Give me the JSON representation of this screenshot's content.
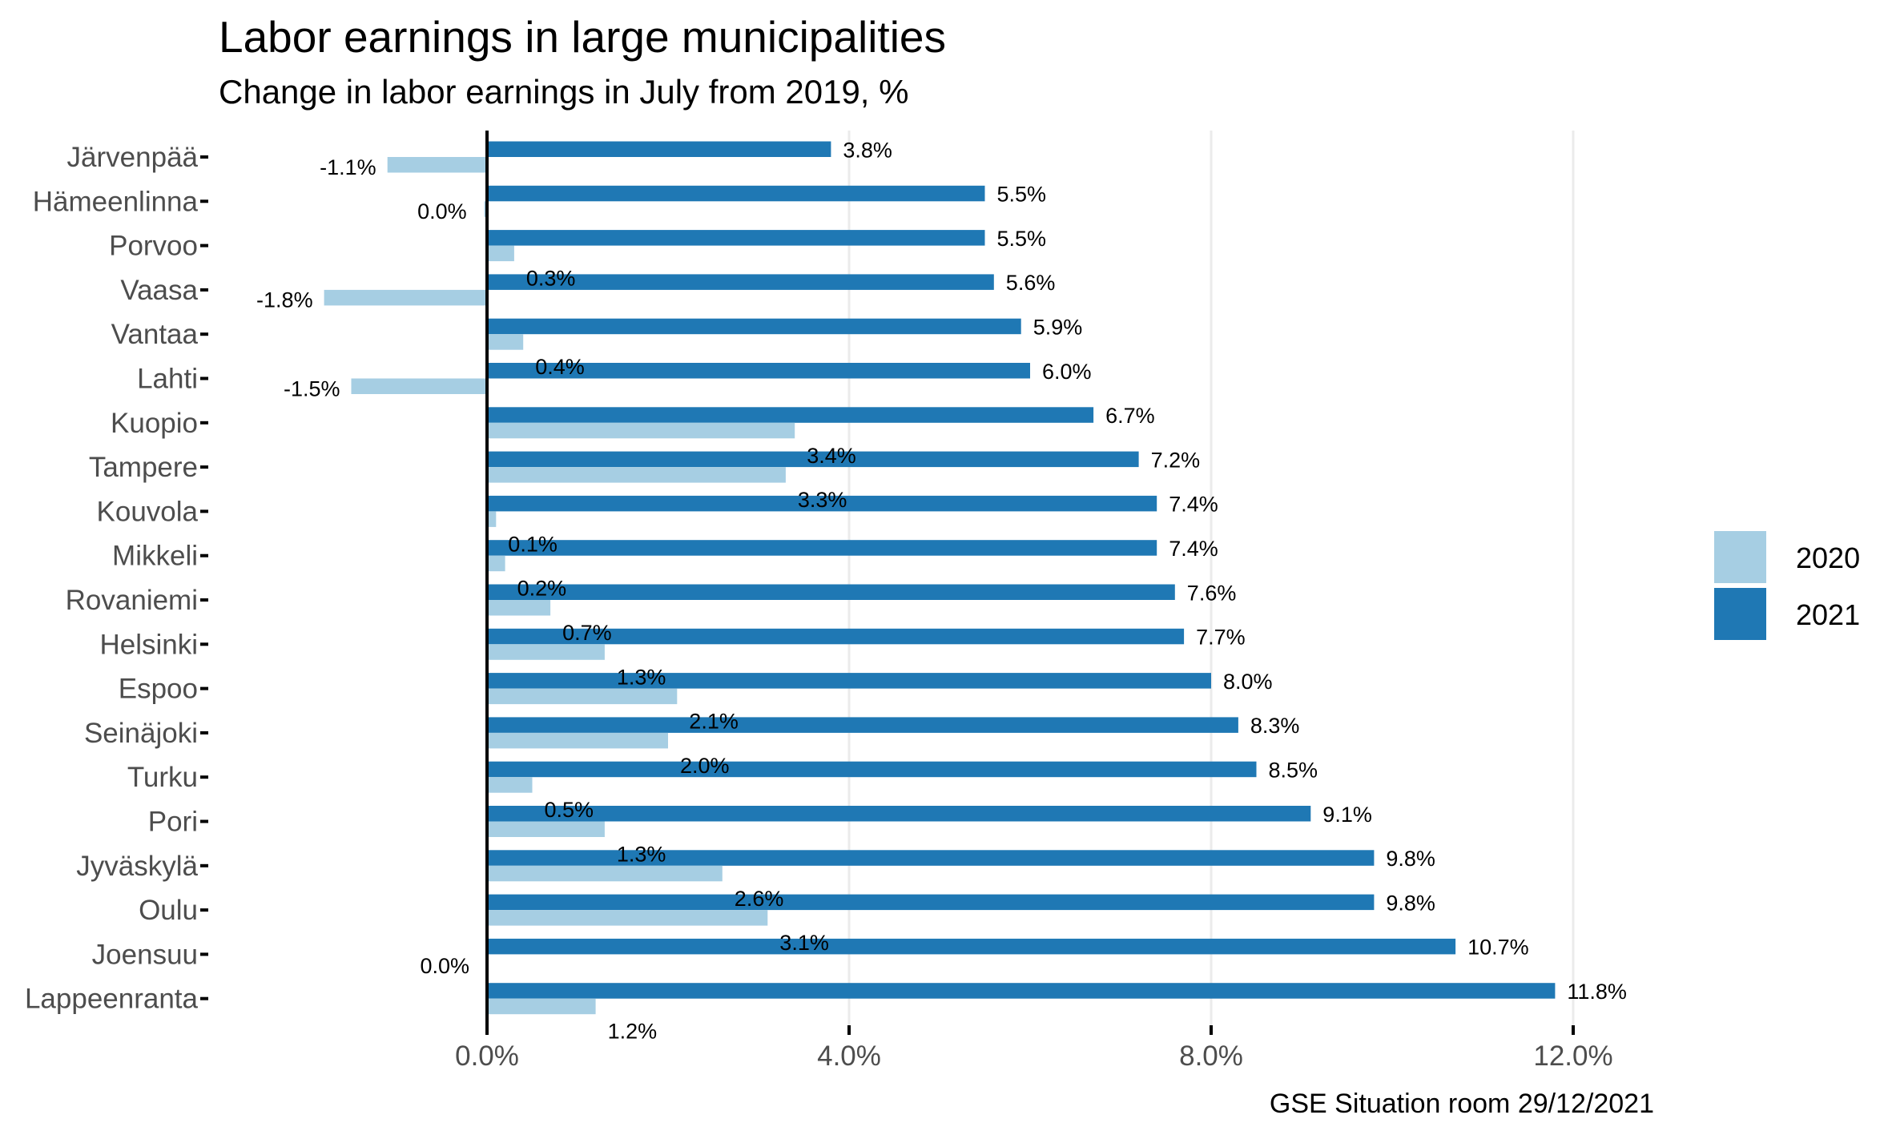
{
  "chart_data": {
    "type": "bar",
    "orientation": "horizontal",
    "title": "Labor earnings in large municipalities",
    "subtitle": "Change in labor earnings in July from 2019, %",
    "caption": "GSE Situation room 29/12/2021",
    "xlabel": "",
    "ylabel": "",
    "xlim": [
      -3.06,
      12.9
    ],
    "xticks": [
      0,
      4,
      8,
      12
    ],
    "xtick_labels": [
      "0.0%",
      "4.0%",
      "8.0%",
      "12.0%"
    ],
    "grid": "vertical major",
    "legend": {
      "position": "right",
      "entries": [
        "2020",
        "2021"
      ]
    },
    "categories": [
      "Järvenpää",
      "Hämeenlinna",
      "Porvoo",
      "Vaasa",
      "Vantaa",
      "Lahti",
      "Kuopio",
      "Tampere",
      "Kouvola",
      "Mikkeli",
      "Rovaniemi",
      "Helsinki",
      "Espoo",
      "Seinäjoki",
      "Turku",
      "Pori",
      "Jyväskylä",
      "Oulu",
      "Joensuu",
      "Lappeenranta"
    ],
    "series": [
      {
        "name": "2020",
        "color": "#a6cee3",
        "values": [
          -1.1,
          -0.03,
          0.3,
          -1.8,
          0.4,
          -1.5,
          3.4,
          3.3,
          0.1,
          0.2,
          0.7,
          1.3,
          2.1,
          2.0,
          0.5,
          1.3,
          2.6,
          3.1,
          0.0,
          1.2
        ],
        "labels": [
          "-1.1%",
          "0.0%",
          "0.3%",
          "-1.8%",
          "0.4%",
          "-1.5%",
          "3.4%",
          "3.3%",
          "0.1%",
          "0.2%",
          "0.7%",
          "1.3%",
          "2.1%",
          "2.0%",
          "0.5%",
          "1.3%",
          "2.6%",
          "3.1%",
          "0.0%",
          "1.2%"
        ]
      },
      {
        "name": "2021",
        "color": "#1f78b4",
        "values": [
          3.8,
          5.5,
          5.5,
          5.6,
          5.9,
          6.0,
          6.7,
          7.2,
          7.4,
          7.4,
          7.6,
          7.7,
          8.0,
          8.3,
          8.5,
          9.1,
          9.8,
          9.8,
          10.7,
          11.8
        ],
        "labels": [
          "3.8%",
          "5.5%",
          "5.5%",
          "5.6%",
          "5.9%",
          "6.0%",
          "6.7%",
          "7.2%",
          "7.4%",
          "7.4%",
          "7.6%",
          "7.7%",
          "8.0%",
          "8.3%",
          "8.5%",
          "9.1%",
          "9.8%",
          "9.8%",
          "10.7%",
          "11.8%"
        ]
      }
    ]
  }
}
